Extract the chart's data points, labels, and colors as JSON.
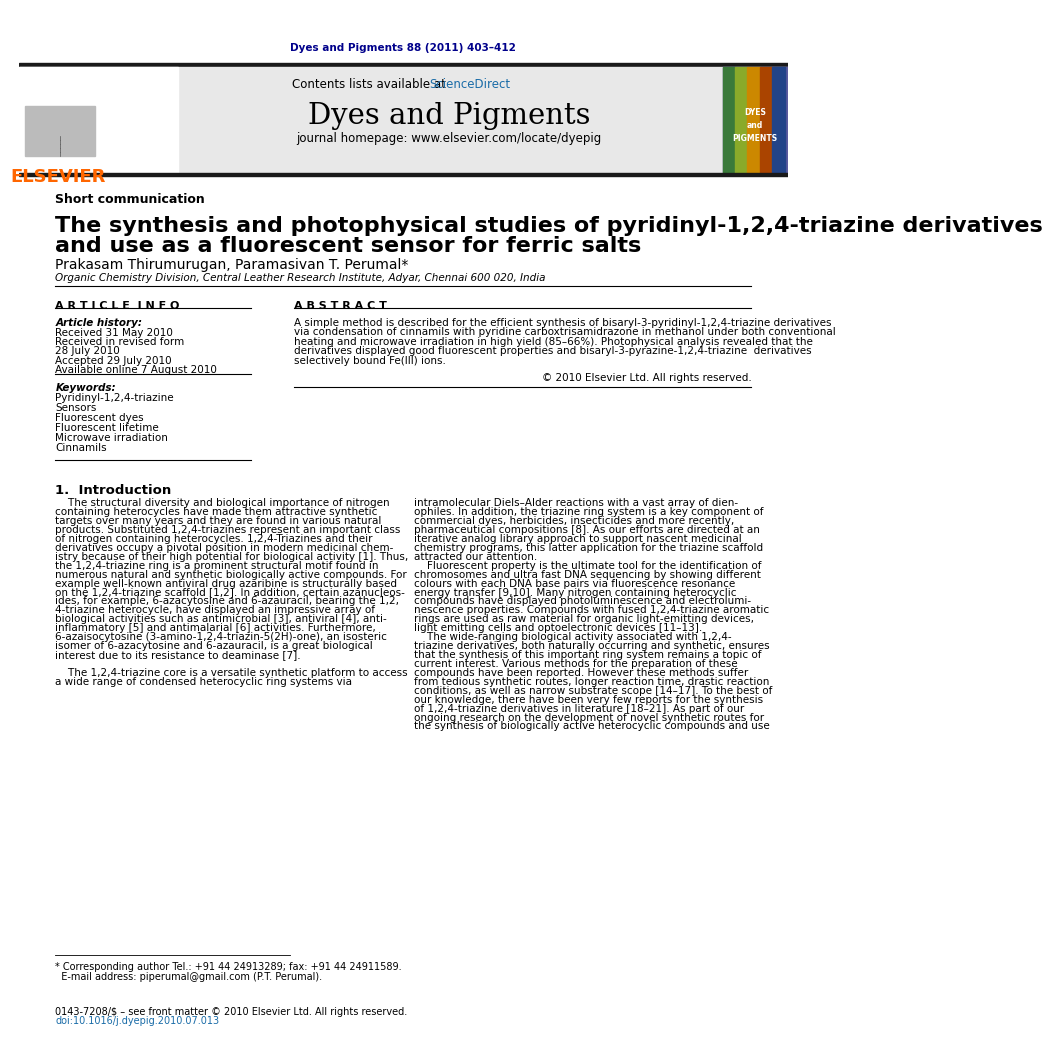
{
  "journal_ref": "Dyes and Pigments 88 (2011) 403–412",
  "journal_ref_color": "#00008B",
  "sciencedirect_color": "#1a6ca8",
  "journal_name": "Dyes and Pigments",
  "homepage_text": "journal homepage: www.elsevier.com/locate/dyepig",
  "elsevier_color": "#FF6600",
  "section_type": "Short communication",
  "paper_title_line1": "The synthesis and photophysical studies of pyridinyl-1,2,4-triazine derivatives",
  "paper_title_line2": "and use as a fluorescent sensor for ferric salts",
  "authors": "Prakasam Thirumurugan, Paramasivan T. Perumal*",
  "affiliation": "Organic Chemistry Division, Central Leather Research Institute, Adyar, Chennai 600 020, India",
  "article_info_header": "A R T I C L E  I N F O",
  "abstract_header": "A B S T R A C T",
  "article_history_label": "Article history:",
  "received_label": "Received 31 May 2010",
  "revised_label": "Received in revised form",
  "revised_date": "28 July 2010",
  "accepted_label": "Accepted 29 July 2010",
  "available_label": "Available online 7 August 2010",
  "keywords_label": "Keywords:",
  "keywords": [
    "Pyridinyl-1,2,4-triazine",
    "Sensors",
    "Fluorescent dyes",
    "Fluorescent lifetime",
    "Microwave irradiation",
    "Cinnamils"
  ],
  "copyright_text": "© 2010 Elsevier Ltd. All rights reserved.",
  "intro_header": "1.  Introduction",
  "footnote_line1": "* Corresponding author Tel.: +91 44 24913289; fax: +91 44 24911589.",
  "footnote_line2": "  E-mail address: piperumal@gmail.com (P.T. Perumal).",
  "issn_text": "0143-7208/$ – see front matter © 2010 Elsevier Ltd. All rights reserved.",
  "doi_text": "doi:10.1016/j.dyepig.2010.07.013",
  "header_bg": "#E8E8E8",
  "top_bar_color": "#1a1a1a",
  "journal_cover_bg": "#5B5B9E",
  "abstract_lines": [
    "A simple method is described for the efficient synthesis of bisaryl-3-pyridinyl-1,2,4-triazine derivatives",
    "via condensation of cinnamils with pyridine carboxtrisamidrazone in methanol under both conventional",
    "heating and microwave irradiation in high yield (85–66%). Photophysical analysis revealed that the",
    "derivatives displayed good fluorescent properties and bisaryl-3-pyrazine-1,2,4-triazine  derivatives",
    "selectively bound Fe(III) ions."
  ],
  "intro_col1": [
    "    The structural diversity and biological importance of nitrogen",
    "containing heterocycles have made them attractive synthetic",
    "targets over many years and they are found in various natural",
    "products. Substituted 1,2,4-triazines represent an important class",
    "of nitrogen containing heterocycles. 1,2,4-Triazines and their",
    "derivatives occupy a pivotal position in modern medicinal chem-",
    "istry because of their high potential for biological activity [1]. Thus,",
    "the 1,2,4-triazine ring is a prominent structural motif found in",
    "numerous natural and synthetic biologically active compounds. For",
    "example well-known antiviral drug azaribine is structurally based",
    "on the 1,2,4-triazine scaffold [1,2]. In addition, certain azanucleos-",
    "ides, for example, 6-azacytosine and 6-azauracil, bearing the 1,2,",
    "4-triazine heterocycle, have displayed an impressive array of",
    "biological activities such as antimicrobial [3], antiviral [4], anti-",
    "inflammatory [5] and antimalarial [6] activities. Furthermore,",
    "6-azaisocytosine (3-amino-1,2,4-triazin-5(2H)-one), an isosteric",
    "isomer of 6-azacytosine and 6-azauracil, is a great biological",
    "interest due to its resistance to deaminase [7].",
    "",
    "    The 1,2,4-triazine core is a versatile synthetic platform to access",
    "a wide range of condensed heterocyclic ring systems via"
  ],
  "intro_col2": [
    "intramolecular Diels–Alder reactions with a vast array of dien-",
    "ophiles. In addition, the triazine ring system is a key component of",
    "commercial dyes, herbicides, insecticides and more recently,",
    "pharmaceutical compositions [8]. As our efforts are directed at an",
    "iterative analog library approach to support nascent medicinal",
    "chemistry programs, this latter application for the triazine scaffold",
    "attracted our attention.",
    "    Fluorescent property is the ultimate tool for the identification of",
    "chromosomes and ultra fast DNA sequencing by showing different",
    "colours with each DNA base pairs via fluorescence resonance",
    "energy transfer [9,10]. Many nitrogen containing heterocyclic",
    "compounds have displayed photoluminescence and electrolumi-",
    "nescence properties. Compounds with fused 1,2,4-triazine aromatic",
    "rings are used as raw material for organic light-emitting devices,",
    "light emitting cells and optoelectronic devices [11–13].",
    "    The wide-ranging biological activity associated with 1,2,4-",
    "triazine derivatives, both naturally occurring and synthetic, ensures",
    "that the synthesis of this important ring system remains a topic of",
    "current interest. Various methods for the preparation of these",
    "compounds have been reported. However these methods suffer",
    "from tedious synthetic routes, longer reaction time, drastic reaction",
    "conditions, as well as narrow substrate scope [14–17]. To the best of",
    "our knowledge, there have been very few reports for the synthesis",
    "of 1,2,4-triazine derivatives in literature [18–21]. As part of our",
    "ongoing research on the development of novel synthetic routes for",
    "the synthesis of biologically active heterocyclic compounds and use"
  ]
}
